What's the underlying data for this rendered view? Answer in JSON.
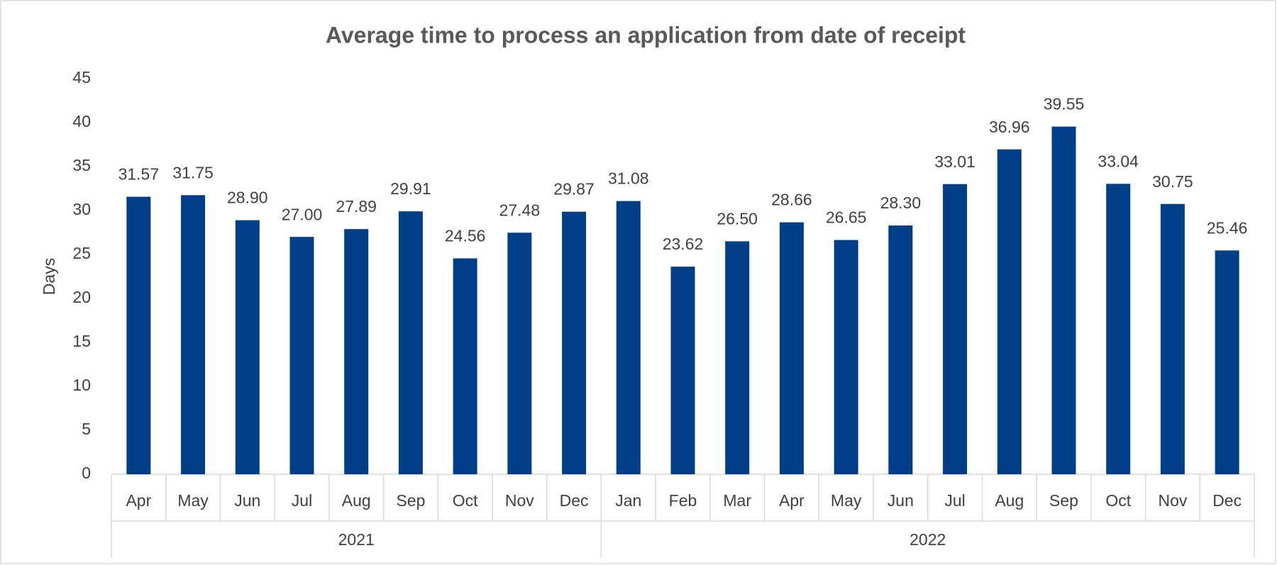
{
  "chart_data": {
    "type": "bar",
    "title": "Average time to process an application from date of receipt",
    "y_label": "Days",
    "groups": [
      {
        "label": "2021",
        "categories": [
          "Apr",
          "May",
          "Jun",
          "Jul",
          "Aug",
          "Sep",
          "Oct",
          "Nov",
          "Dec"
        ]
      },
      {
        "label": "2022",
        "categories": [
          "Jan",
          "Feb",
          "Mar",
          "Apr",
          "May",
          "Jun",
          "Jul",
          "Aug",
          "Sep",
          "Oct",
          "Nov",
          "Dec"
        ]
      }
    ],
    "values": [
      31.57,
      31.75,
      28.9,
      27,
      27.89,
      29.91,
      24.56,
      27.48,
      29.87,
      31.08,
      23.62,
      26.5,
      28.66,
      26.65,
      28.3,
      33.01,
      36.96,
      39.55,
      33.04,
      30.75,
      25.46
    ],
    "value_labels": [
      "31.57",
      "31.75",
      "28.90",
      "27.00",
      "27.89",
      "29.91",
      "24.56",
      "27.48",
      "29.87",
      "31.08",
      "23.62",
      "26.50",
      "28.66",
      "26.65",
      "28.30",
      "33.01",
      "36.96",
      "39.55",
      "33.04",
      "30.75",
      "25.46"
    ],
    "color": "#003f87",
    "ylim": [
      0,
      45
    ],
    "yticks": [
      0,
      5,
      10,
      15,
      20,
      25,
      30,
      35,
      40,
      45
    ],
    "grid": false
  }
}
